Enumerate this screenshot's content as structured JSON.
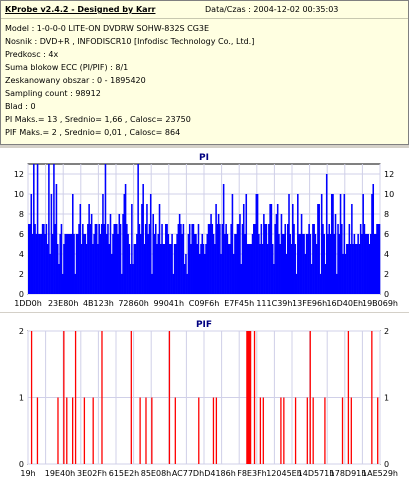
{
  "info": {
    "title": "KProbe v2.4.2 - Designed by Karr",
    "datetime": "Data/Czas : 2004-12-02 00:35:03",
    "model": "Model : 1-0-0-0 LITE-ON DVDRW SOHW-832S  CG3E",
    "nosnik": "Nosnik : DVD+R , INFODISCR10 [Infodisc Technology Co., Ltd.]",
    "predkosc": "Predkosc : 4x",
    "suma": "Suma blokow ECC (PI/PIF) : 8/1",
    "zeskanowany": "Zeskanowany obszar : 0 - 1895420",
    "sampling": "Sampling count : 98912",
    "blad": "Blad : 0",
    "pi_stats": "PI Maks.= 13 , Srednio= 1,66 , Calosc= 23750",
    "pif_stats": "PIF Maks.= 2 , Srednio= 0,01 , Calosc= 864"
  },
  "chart_data": [
    {
      "type": "bar",
      "title": "PI",
      "ylim": [
        0,
        13
      ],
      "yticks": [
        0,
        2,
        4,
        6,
        8,
        10,
        12
      ],
      "xticks": [
        "1DD0h",
        "23E80h",
        "4B123h",
        "72860h",
        "99041h",
        "C09F6h",
        "E7F45h",
        "111C39h",
        "13FE96h",
        "16D40Eh",
        "19B069h"
      ],
      "series": [
        {
          "color": "#0000ff",
          "baseline": 6,
          "max": 13,
          "count": 280
        }
      ],
      "grid": true
    },
    {
      "type": "bar",
      "title": "PIF",
      "ylim": [
        0,
        2
      ],
      "yticks": [
        0,
        1,
        2
      ],
      "xticks": [
        "19h",
        "19E40h",
        "3E02Fh",
        "615E2h",
        "85E08h",
        "AC77Dh",
        "D4186h",
        "F8E3Fh",
        "12045Eh",
        "14D571h",
        "178D91h",
        "1AE529h"
      ],
      "series": [
        {
          "color": "#ff0000",
          "max": 2,
          "count": 120
        }
      ],
      "grid": true
    }
  ]
}
